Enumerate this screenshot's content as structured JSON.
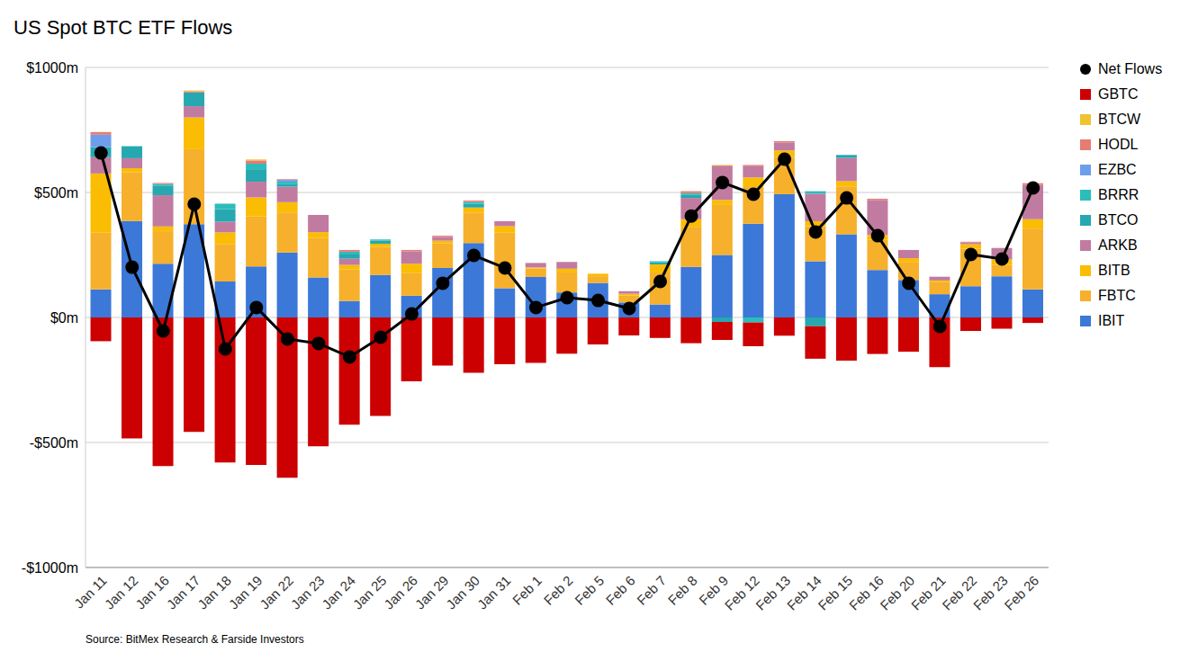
{
  "chart_data": {
    "type": "bar",
    "title": "US Spot BTC ETF Flows",
    "source": "Source: BitMex Research & Farside Investors",
    "stacked": true,
    "grid": true,
    "legend": "right",
    "categories": [
      "Jan 11",
      "Jan 12",
      "Jan 16",
      "Jan 17",
      "Jan 18",
      "Jan 19",
      "Jan 22",
      "Jan 23",
      "Jan 24",
      "Jan 25",
      "Jan 26",
      "Jan 29",
      "Jan 30",
      "Jan 31",
      "Feb 1",
      "Feb 2",
      "Feb 5",
      "Feb 6",
      "Feb 7",
      "Feb 8",
      "Feb 9",
      "Feb 12",
      "Feb 13",
      "Feb 14",
      "Feb 15",
      "Feb 16",
      "Feb 20",
      "Feb 21",
      "Feb 22",
      "Feb 23",
      "Feb 26"
    ],
    "ylim": [
      -1000,
      1000
    ],
    "yticks": [
      {
        "value": -1000,
        "label": "-$1000m"
      },
      {
        "value": -500,
        "label": "-$500m"
      },
      {
        "value": 0,
        "label": "$0m"
      },
      {
        "value": 500,
        "label": "$500m"
      },
      {
        "value": 1000,
        "label": "$1000m"
      }
    ],
    "series": [
      {
        "name": "Net Flows",
        "type": "line",
        "marker": "circle",
        "color": "#000000",
        "values": [
          658,
          201,
          -54,
          453,
          -126,
          40,
          -86,
          -104,
          -158,
          -79,
          14,
          137,
          248,
          198,
          40,
          79,
          68,
          36,
          144,
          406,
          540,
          493,
          633,
          342,
          478,
          327,
          137,
          -36,
          252,
          234,
          518
        ]
      },
      {
        "name": "GBTC",
        "type": "bar",
        "color": "#cc0000",
        "values": [
          -95,
          -484,
          -594,
          -458,
          -580,
          -590,
          -641,
          -515,
          -429,
          -394,
          -255,
          -192,
          -221,
          -187,
          -182,
          -145,
          -108,
          -72,
          -82,
          -103,
          -72,
          -95,
          -73,
          -130,
          -173,
          -146,
          -137,
          -199,
          -54,
          -45,
          -22
        ]
      },
      {
        "name": "BTCW",
        "type": "bar",
        "color": "#f1c232",
        "values": [
          1,
          0,
          0,
          3,
          0,
          4,
          0,
          0,
          0,
          0,
          0,
          0,
          0,
          0,
          0,
          0,
          0,
          0,
          0,
          0,
          2,
          0,
          0,
          0,
          0,
          0,
          0,
          0,
          0,
          0,
          0
        ]
      },
      {
        "name": "HODL",
        "type": "bar",
        "color": "#e67c73",
        "values": [
          10,
          0,
          4,
          5,
          0,
          13,
          3,
          0,
          7,
          0,
          5,
          5,
          6,
          0,
          0,
          0,
          0,
          0,
          0,
          8,
          3,
          5,
          5,
          0,
          0,
          5,
          0,
          0,
          3,
          0,
          7
        ]
      },
      {
        "name": "EZBC",
        "type": "bar",
        "color": "#6d9eeb",
        "values": [
          50,
          0,
          0,
          0,
          0,
          0,
          7,
          0,
          0,
          0,
          0,
          0,
          0,
          0,
          0,
          0,
          0,
          0,
          0,
          0,
          0,
          0,
          0,
          0,
          0,
          0,
          0,
          0,
          0,
          0,
          0
        ]
      },
      {
        "name": "BRRR",
        "type": "bar",
        "color": "#2cbcbc",
        "values": [
          0,
          0,
          8,
          0,
          22,
          22,
          8,
          0,
          8,
          5,
          0,
          0,
          7,
          0,
          0,
          0,
          0,
          0,
          4,
          7,
          0,
          -20,
          0,
          10,
          0,
          0,
          0,
          0,
          0,
          0,
          0
        ]
      },
      {
        "name": "BTCO",
        "type": "bar",
        "color": "#26a8b0",
        "values": [
          40,
          48,
          37,
          55,
          50,
          50,
          12,
          0,
          20,
          12,
          0,
          0,
          15,
          0,
          0,
          0,
          0,
          0,
          9,
          12,
          -18,
          0,
          0,
          -35,
          12,
          0,
          0,
          0,
          0,
          0,
          0
        ]
      },
      {
        "name": "ARKB",
        "type": "bar",
        "color": "#c27ba0",
        "values": [
          65,
          40,
          125,
          45,
          43,
          63,
          62,
          69,
          25,
          0,
          50,
          15,
          0,
          20,
          18,
          27,
          0,
          10,
          0,
          85,
          135,
          45,
          32,
          110,
          93,
          140,
          33,
          15,
          7,
          46,
          137
        ]
      },
      {
        "name": "BITB",
        "type": "bar",
        "color": "#fbbc04",
        "values": [
          237,
          16,
          19,
          127,
          46,
          76,
          41,
          23,
          18,
          13,
          38,
          11,
          20,
          26,
          4,
          15,
          10,
          7,
          32,
          31,
          20,
          35,
          25,
          20,
          22,
          20,
          17,
          7,
          18,
          22,
          38
        ]
      },
      {
        "name": "FBTC",
        "type": "bar",
        "color": "#f6b02b",
        "values": [
          227,
          195,
          130,
          300,
          150,
          200,
          160,
          158,
          126,
          112,
          90,
          98,
          122,
          222,
          34,
          80,
          27,
          28,
          128,
          160,
          200,
          150,
          150,
          140,
          190,
          120,
          70,
          48,
          150,
          45,
          243
        ]
      },
      {
        "name": "IBIT",
        "type": "bar",
        "color": "#3c78d8",
        "values": [
          112,
          386,
          215,
          373,
          144,
          204,
          260,
          160,
          66,
          170,
          87,
          198,
          298,
          117,
          162,
          100,
          138,
          60,
          52,
          202,
          250,
          375,
          493,
          225,
          333,
          190,
          150,
          93,
          125,
          165,
          112
        ]
      }
    ]
  }
}
